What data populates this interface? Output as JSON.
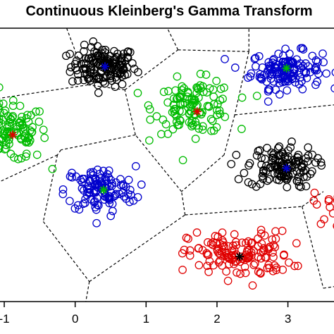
{
  "chart_data": {
    "type": "scatter",
    "title": "Continuous Kleinberg's Gamma Transform",
    "xlabel": "",
    "ylabel": "",
    "xlim": [
      -1.06,
      3.65
    ],
    "ylim": [
      -3.0,
      5.2
    ],
    "x_ticks": [
      -1,
      0,
      1,
      2,
      3
    ],
    "x_tick_labels": [
      "-1",
      "0",
      "1",
      "2",
      "3"
    ],
    "grid": false,
    "legend": "none",
    "marker": "open-circle",
    "center_marker": "asterisk",
    "colors": {
      "black": "#000000",
      "blue": "#0000cc",
      "green": "#00bb00",
      "red": "#e00000"
    },
    "clusters": [
      {
        "color": "black",
        "center": [
          0.4,
          4.05
        ],
        "spread": [
          0.23,
          0.3
        ],
        "n": 150
      },
      {
        "color": "blue",
        "center": [
          2.98,
          3.95
        ],
        "spread": [
          0.25,
          0.28
        ],
        "n": 140
      },
      {
        "color": "green",
        "center": [
          -0.95,
          2.05
        ],
        "spread": [
          0.28,
          0.42
        ],
        "n": 130
      },
      {
        "color": "green",
        "center": [
          1.68,
          2.85
        ],
        "spread": [
          0.28,
          0.4
        ],
        "n": 120
      },
      {
        "color": "blue",
        "center": [
          0.35,
          0.35
        ],
        "spread": [
          0.25,
          0.35
        ],
        "n": 120
      },
      {
        "color": "black",
        "center": [
          2.9,
          1.05
        ],
        "spread": [
          0.24,
          0.32
        ],
        "n": 130
      },
      {
        "color": "red",
        "center": [
          2.32,
          -1.6
        ],
        "spread": [
          0.36,
          0.35
        ],
        "n": 140
      },
      {
        "color": "red",
        "center": [
          3.85,
          -0.1
        ],
        "spread": [
          0.25,
          0.3
        ],
        "n": 40
      }
    ],
    "centers": [
      {
        "x": 0.42,
        "y": 4.05,
        "color": "blue"
      },
      {
        "x": 2.98,
        "y": 4.0,
        "color": "green"
      },
      {
        "x": -0.88,
        "y": 2.0,
        "color": "red"
      },
      {
        "x": 1.72,
        "y": 2.7,
        "color": "red"
      },
      {
        "x": 0.4,
        "y": 0.35,
        "color": "green"
      },
      {
        "x": 2.98,
        "y": 1.0,
        "color": "blue"
      },
      {
        "x": 2.32,
        "y": -1.65,
        "color": "black"
      }
    ],
    "voronoi_edges": [
      [
        [
          -0.12,
          5.2
        ],
        [
          0.18,
          3.5
        ]
      ],
      [
        [
          0.18,
          3.5
        ],
        [
          -1.06,
          3.1
        ]
      ],
      [
        [
          0.18,
          3.5
        ],
        [
          0.7,
          3.35
        ]
      ],
      [
        [
          0.7,
          3.35
        ],
        [
          1.45,
          4.55
        ]
      ],
      [
        [
          1.45,
          4.55
        ],
        [
          1.3,
          5.2
        ]
      ],
      [
        [
          1.45,
          4.55
        ],
        [
          2.45,
          4.5
        ]
      ],
      [
        [
          2.45,
          4.5
        ],
        [
          2.45,
          5.2
        ]
      ],
      [
        [
          2.45,
          4.5
        ],
        [
          2.25,
          2.6
        ]
      ],
      [
        [
          2.25,
          2.6
        ],
        [
          3.65,
          2.9
        ]
      ],
      [
        [
          2.25,
          2.6
        ],
        [
          2.1,
          1.4
        ]
      ],
      [
        [
          2.1,
          1.4
        ],
        [
          1.5,
          0.3
        ]
      ],
      [
        [
          1.5,
          0.3
        ],
        [
          0.85,
          2.0
        ]
      ],
      [
        [
          0.85,
          2.0
        ],
        [
          0.7,
          3.35
        ]
      ],
      [
        [
          0.85,
          2.0
        ],
        [
          -0.2,
          1.55
        ]
      ],
      [
        [
          -0.2,
          1.55
        ],
        [
          -0.25,
          1.4
        ]
      ],
      [
        [
          -0.25,
          1.4
        ],
        [
          -1.06,
          0.6
        ]
      ],
      [
        [
          -0.25,
          1.4
        ],
        [
          -0.45,
          -0.6
        ]
      ],
      [
        [
          -0.45,
          -0.6
        ],
        [
          0.2,
          -2.4
        ]
      ],
      [
        [
          0.2,
          -2.4
        ],
        [
          0.15,
          -3.0
        ]
      ],
      [
        [
          0.2,
          -2.4
        ],
        [
          1.55,
          -0.4
        ]
      ],
      [
        [
          1.55,
          -0.4
        ],
        [
          1.5,
          0.3
        ]
      ],
      [
        [
          1.55,
          -0.4
        ],
        [
          3.2,
          -0.15
        ]
      ],
      [
        [
          3.2,
          -0.15
        ],
        [
          3.5,
          0.3
        ]
      ],
      [
        [
          3.2,
          -0.15
        ],
        [
          3.5,
          -2.6
        ]
      ],
      [
        [
          3.5,
          -2.6
        ],
        [
          3.65,
          -2.55
        ]
      ]
    ]
  }
}
